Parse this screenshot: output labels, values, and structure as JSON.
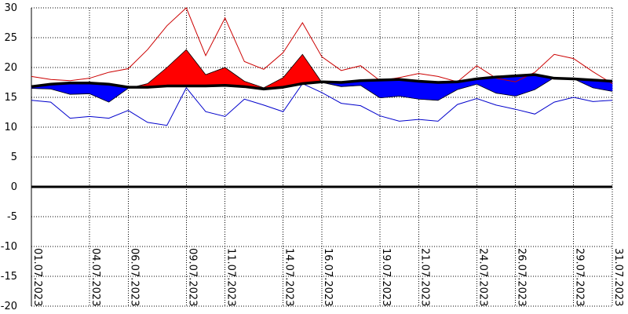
{
  "chart_data": {
    "type": "area",
    "title": "",
    "xlabel": "",
    "ylabel": "",
    "ylim": [
      -20,
      30
    ],
    "y_ticks": [
      30,
      25,
      20,
      15,
      10,
      5,
      0,
      -5,
      -10,
      -15,
      -20
    ],
    "x_tick_labels": [
      "01.07.2023",
      "04.07.2023",
      "06.07.2023",
      "09.07.2023",
      "11.07.2023",
      "14.07.2023",
      "16.07.2023",
      "19.07.2023",
      "21.07.2023",
      "24.07.2023",
      "26.07.2023",
      "29.07.2023",
      "31.07.2023"
    ],
    "x_tick_days": [
      1,
      4,
      6,
      9,
      11,
      14,
      16,
      19,
      21,
      24,
      26,
      29,
      31
    ],
    "grid": true,
    "x_days": [
      1,
      2,
      3,
      4,
      5,
      6,
      7,
      8,
      9,
      10,
      11,
      12,
      13,
      14,
      15,
      16,
      17,
      18,
      19,
      20,
      21,
      22,
      23,
      24,
      25,
      26,
      27,
      28,
      29,
      30,
      31
    ],
    "series": [
      {
        "name": "",
        "color": "#cc0000",
        "values": [
          18.5,
          18.0,
          17.8,
          18.2,
          19.2,
          19.8,
          23.0,
          27.0,
          30.0,
          22.0,
          28.3,
          21.0,
          19.7,
          22.5,
          27.5,
          21.8,
          19.5,
          20.3,
          17.8,
          18.3,
          19.0,
          18.5,
          17.6,
          20.3,
          18.2,
          17.6,
          19.2,
          22.2,
          21.5,
          19.3,
          17.3
        ]
      },
      {
        "name": "",
        "color": "#000000",
        "values": [
          16.8,
          17.2,
          17.4,
          17.4,
          17.2,
          16.7,
          16.7,
          16.9,
          16.9,
          16.9,
          17.0,
          16.8,
          16.4,
          16.7,
          17.3,
          17.6,
          17.5,
          17.8,
          17.9,
          18.0,
          17.7,
          17.5,
          17.6,
          18.1,
          18.4,
          18.6,
          18.8,
          18.2,
          18.1,
          17.9,
          17.7
        ]
      },
      {
        "name": "",
        "color": "#0000cc",
        "values": [
          14.5,
          14.2,
          11.5,
          11.8,
          11.5,
          12.8,
          10.8,
          10.3,
          16.6,
          12.6,
          11.8,
          14.7,
          13.7,
          12.6,
          17.3,
          15.8,
          14.0,
          13.6,
          11.9,
          11.0,
          11.3,
          11.0,
          13.8,
          14.8,
          13.7,
          13.0,
          12.2,
          14.2,
          15.0,
          14.3,
          14.5
        ]
      },
      {
        "name": "",
        "values": [
          16.5,
          16.4,
          15.5,
          15.6,
          14.2,
          16.5,
          17.3,
          20.0,
          23.0,
          18.8,
          20.0,
          17.7,
          16.6,
          18.3,
          22.2,
          17.5,
          16.8,
          17.0,
          14.9,
          15.2,
          14.7,
          14.5,
          16.3,
          17.2,
          15.7,
          15.2,
          16.3,
          18.3,
          18.1,
          16.6,
          16.0
        ]
      }
    ],
    "colors": {
      "warm_fill": "#ff0000",
      "cold_fill": "#0000ff",
      "zero_line": "#000000",
      "grid": "#000000"
    }
  }
}
